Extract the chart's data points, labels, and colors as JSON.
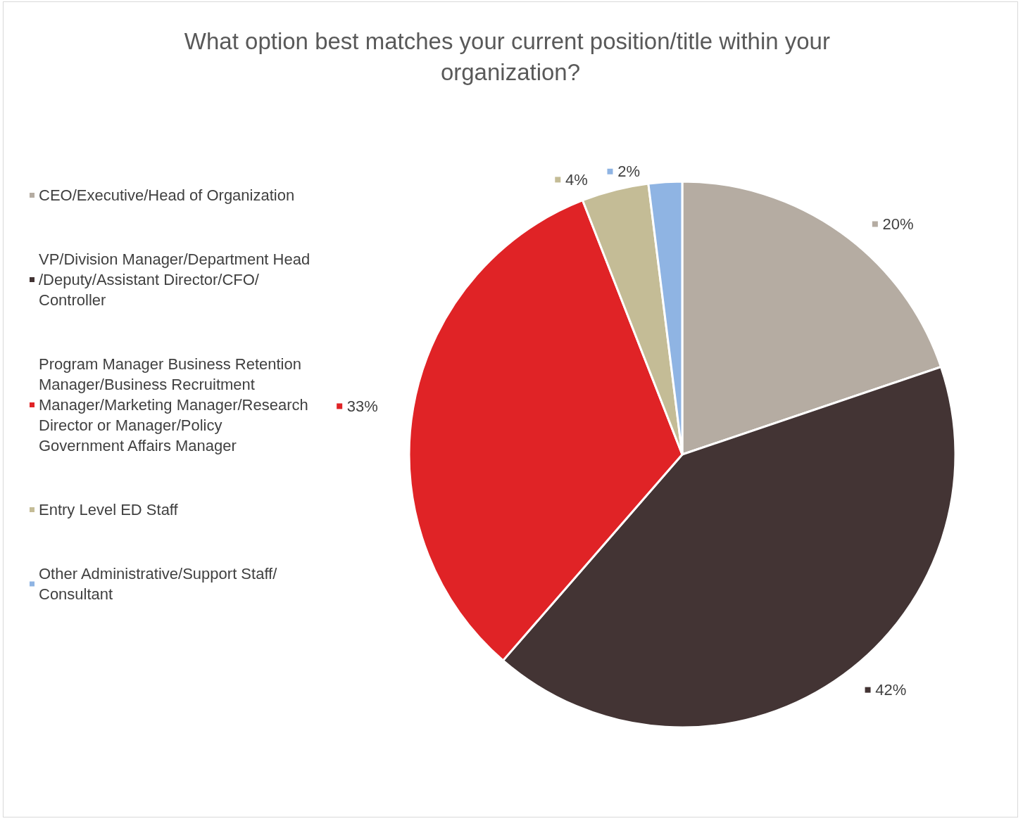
{
  "chart_data": {
    "type": "pie",
    "title": "What option best matches your current position/title within your organization?",
    "categories": [
      "CEO/Executive/Head of Organization",
      "VP/Division Manager/Department Head/Deputy/Assistant Director/CFO/Controller",
      "Program Manager Business Retention Manager/Business Recruitment Manager/Marketing Manager/Research Director or Manager/Policy Government Affairs Manager",
      "Entry Level ED Staff",
      "Other Administrative/Support Staff/Consultant"
    ],
    "values": [
      20,
      42,
      33,
      4,
      2
    ],
    "value_labels": [
      "20%",
      "42%",
      "33%",
      "4%",
      "2%"
    ],
    "colors": [
      "#b5aca2",
      "#433434",
      "#e02326",
      "#c4bc96",
      "#8fb4e3"
    ],
    "legend": "left"
  }
}
